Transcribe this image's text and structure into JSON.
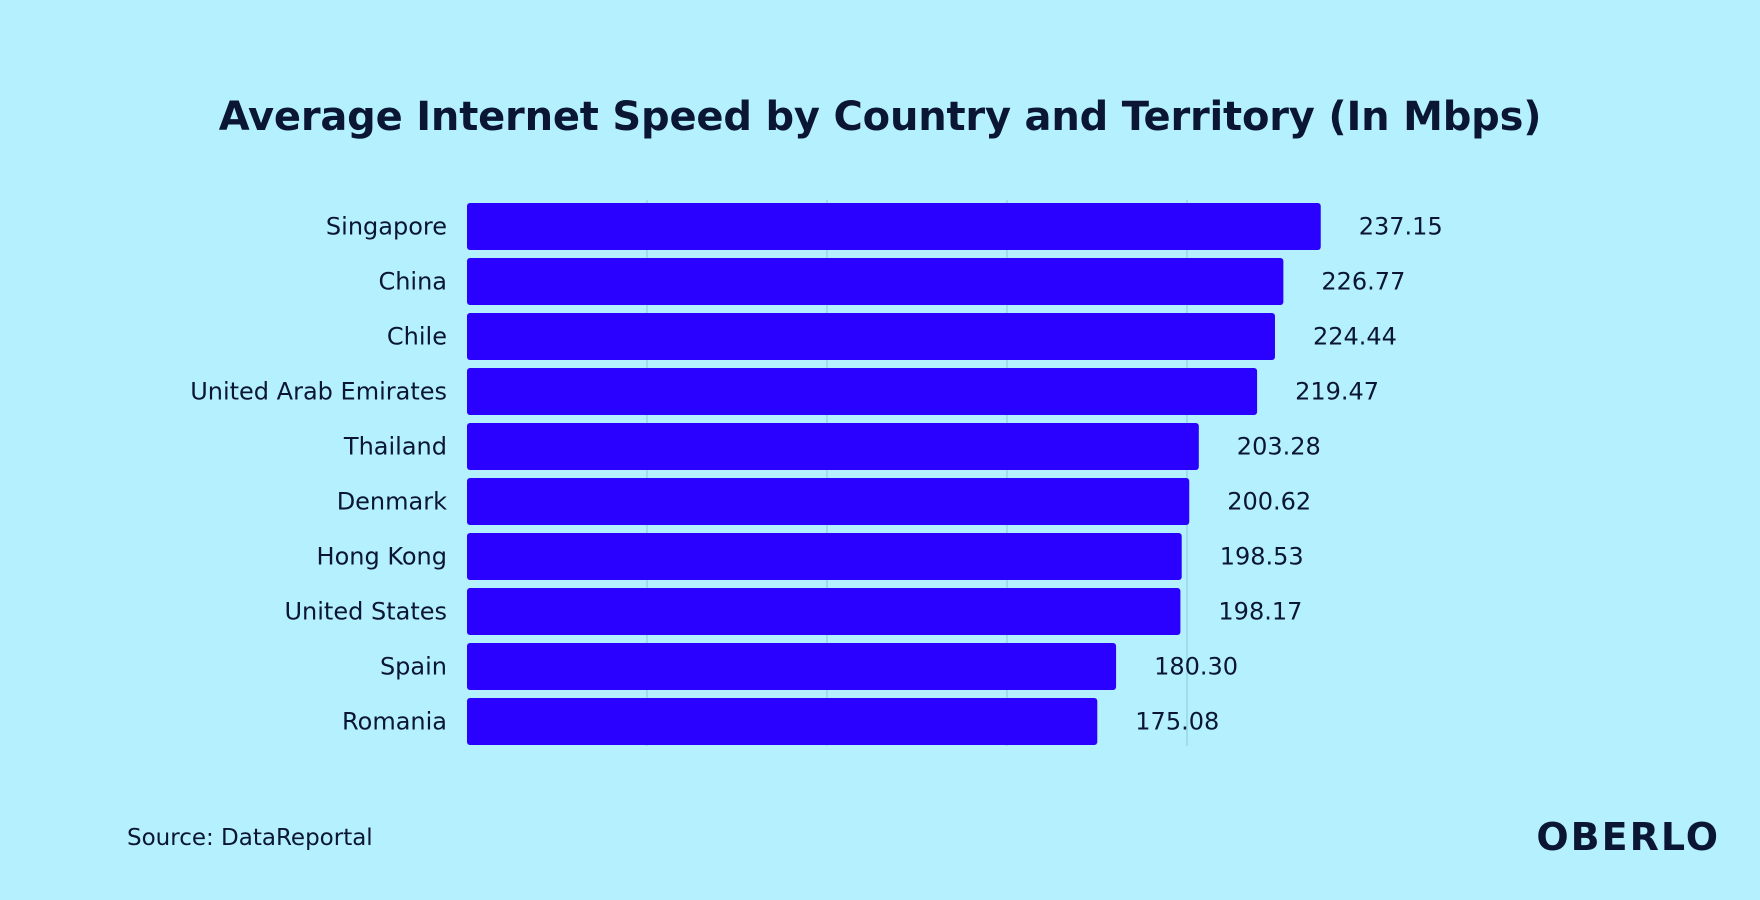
{
  "colors": {
    "background": "#b5f0ff",
    "bar": "#2a00ff",
    "text": "#0a1633",
    "grid": "#8fd0e0"
  },
  "chart_data": {
    "type": "bar",
    "orientation": "horizontal",
    "title": "Average Internet Speed by Country and Territory (In Mbps)",
    "categories": [
      "Singapore",
      "China",
      "Chile",
      "United Arab Emirates",
      "Thailand",
      "Denmark",
      "Hong Kong",
      "United States",
      "Spain",
      "Romania"
    ],
    "values": [
      237.15,
      226.77,
      224.44,
      219.47,
      203.28,
      200.62,
      198.53,
      198.17,
      180.3,
      175.08
    ],
    "value_labels": [
      "237.15",
      "226.77",
      "224.44",
      "219.47",
      "203.28",
      "200.62",
      "198.53",
      "198.17",
      "180.30",
      "175.08"
    ],
    "xlim": [
      0,
      250
    ],
    "x_gridlines": [
      50,
      100,
      150,
      200
    ],
    "xlabel": "",
    "ylabel": "",
    "grid": true,
    "legend": "none"
  },
  "source": "Source: DataReportal",
  "logo": "OBERLO"
}
